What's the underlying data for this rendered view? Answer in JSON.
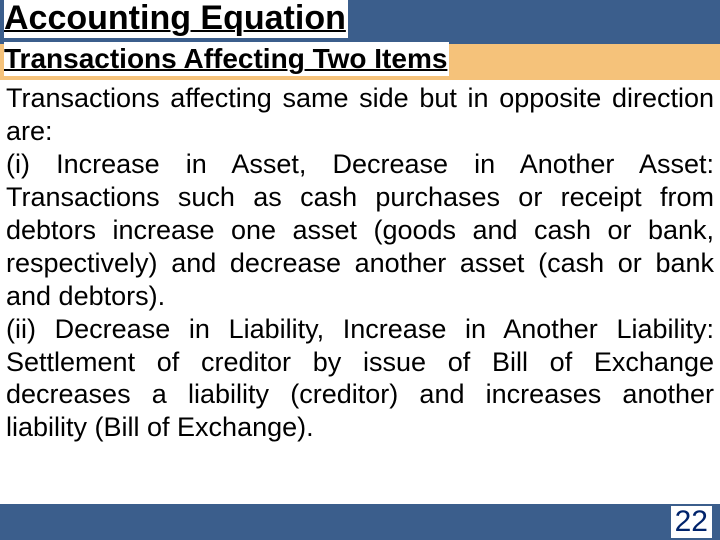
{
  "colors": {
    "header_bar": "#3b5e8c",
    "subtitle_bar": "#f5c27a",
    "background": "#ffffff",
    "text": "#000000",
    "page_number": "#00236b"
  },
  "typography": {
    "title_fontsize": 34,
    "subtitle_fontsize": 28,
    "body_fontsize": 27,
    "pagenum_fontsize": 30,
    "font_family": "Arial"
  },
  "title": "Accounting Equation",
  "subtitle": "Transactions Affecting Two Items",
  "body": {
    "intro": "Transactions affecting same side but in opposite direction are:",
    "point1": "(i) Increase in Asset, Decrease in Another Asset: Transactions such as cash purchases or receipt from debtors increase one asset (goods and cash or bank, respectively) and decrease another asset (cash or bank and debtors).",
    "point2": "(ii) Decrease in Liability, Increase in Another Liability: Settlement of creditor by issue of Bill of Exchange decreases a liability (creditor) and increases another liability (Bill of Exchange)."
  },
  "page_number": "22"
}
